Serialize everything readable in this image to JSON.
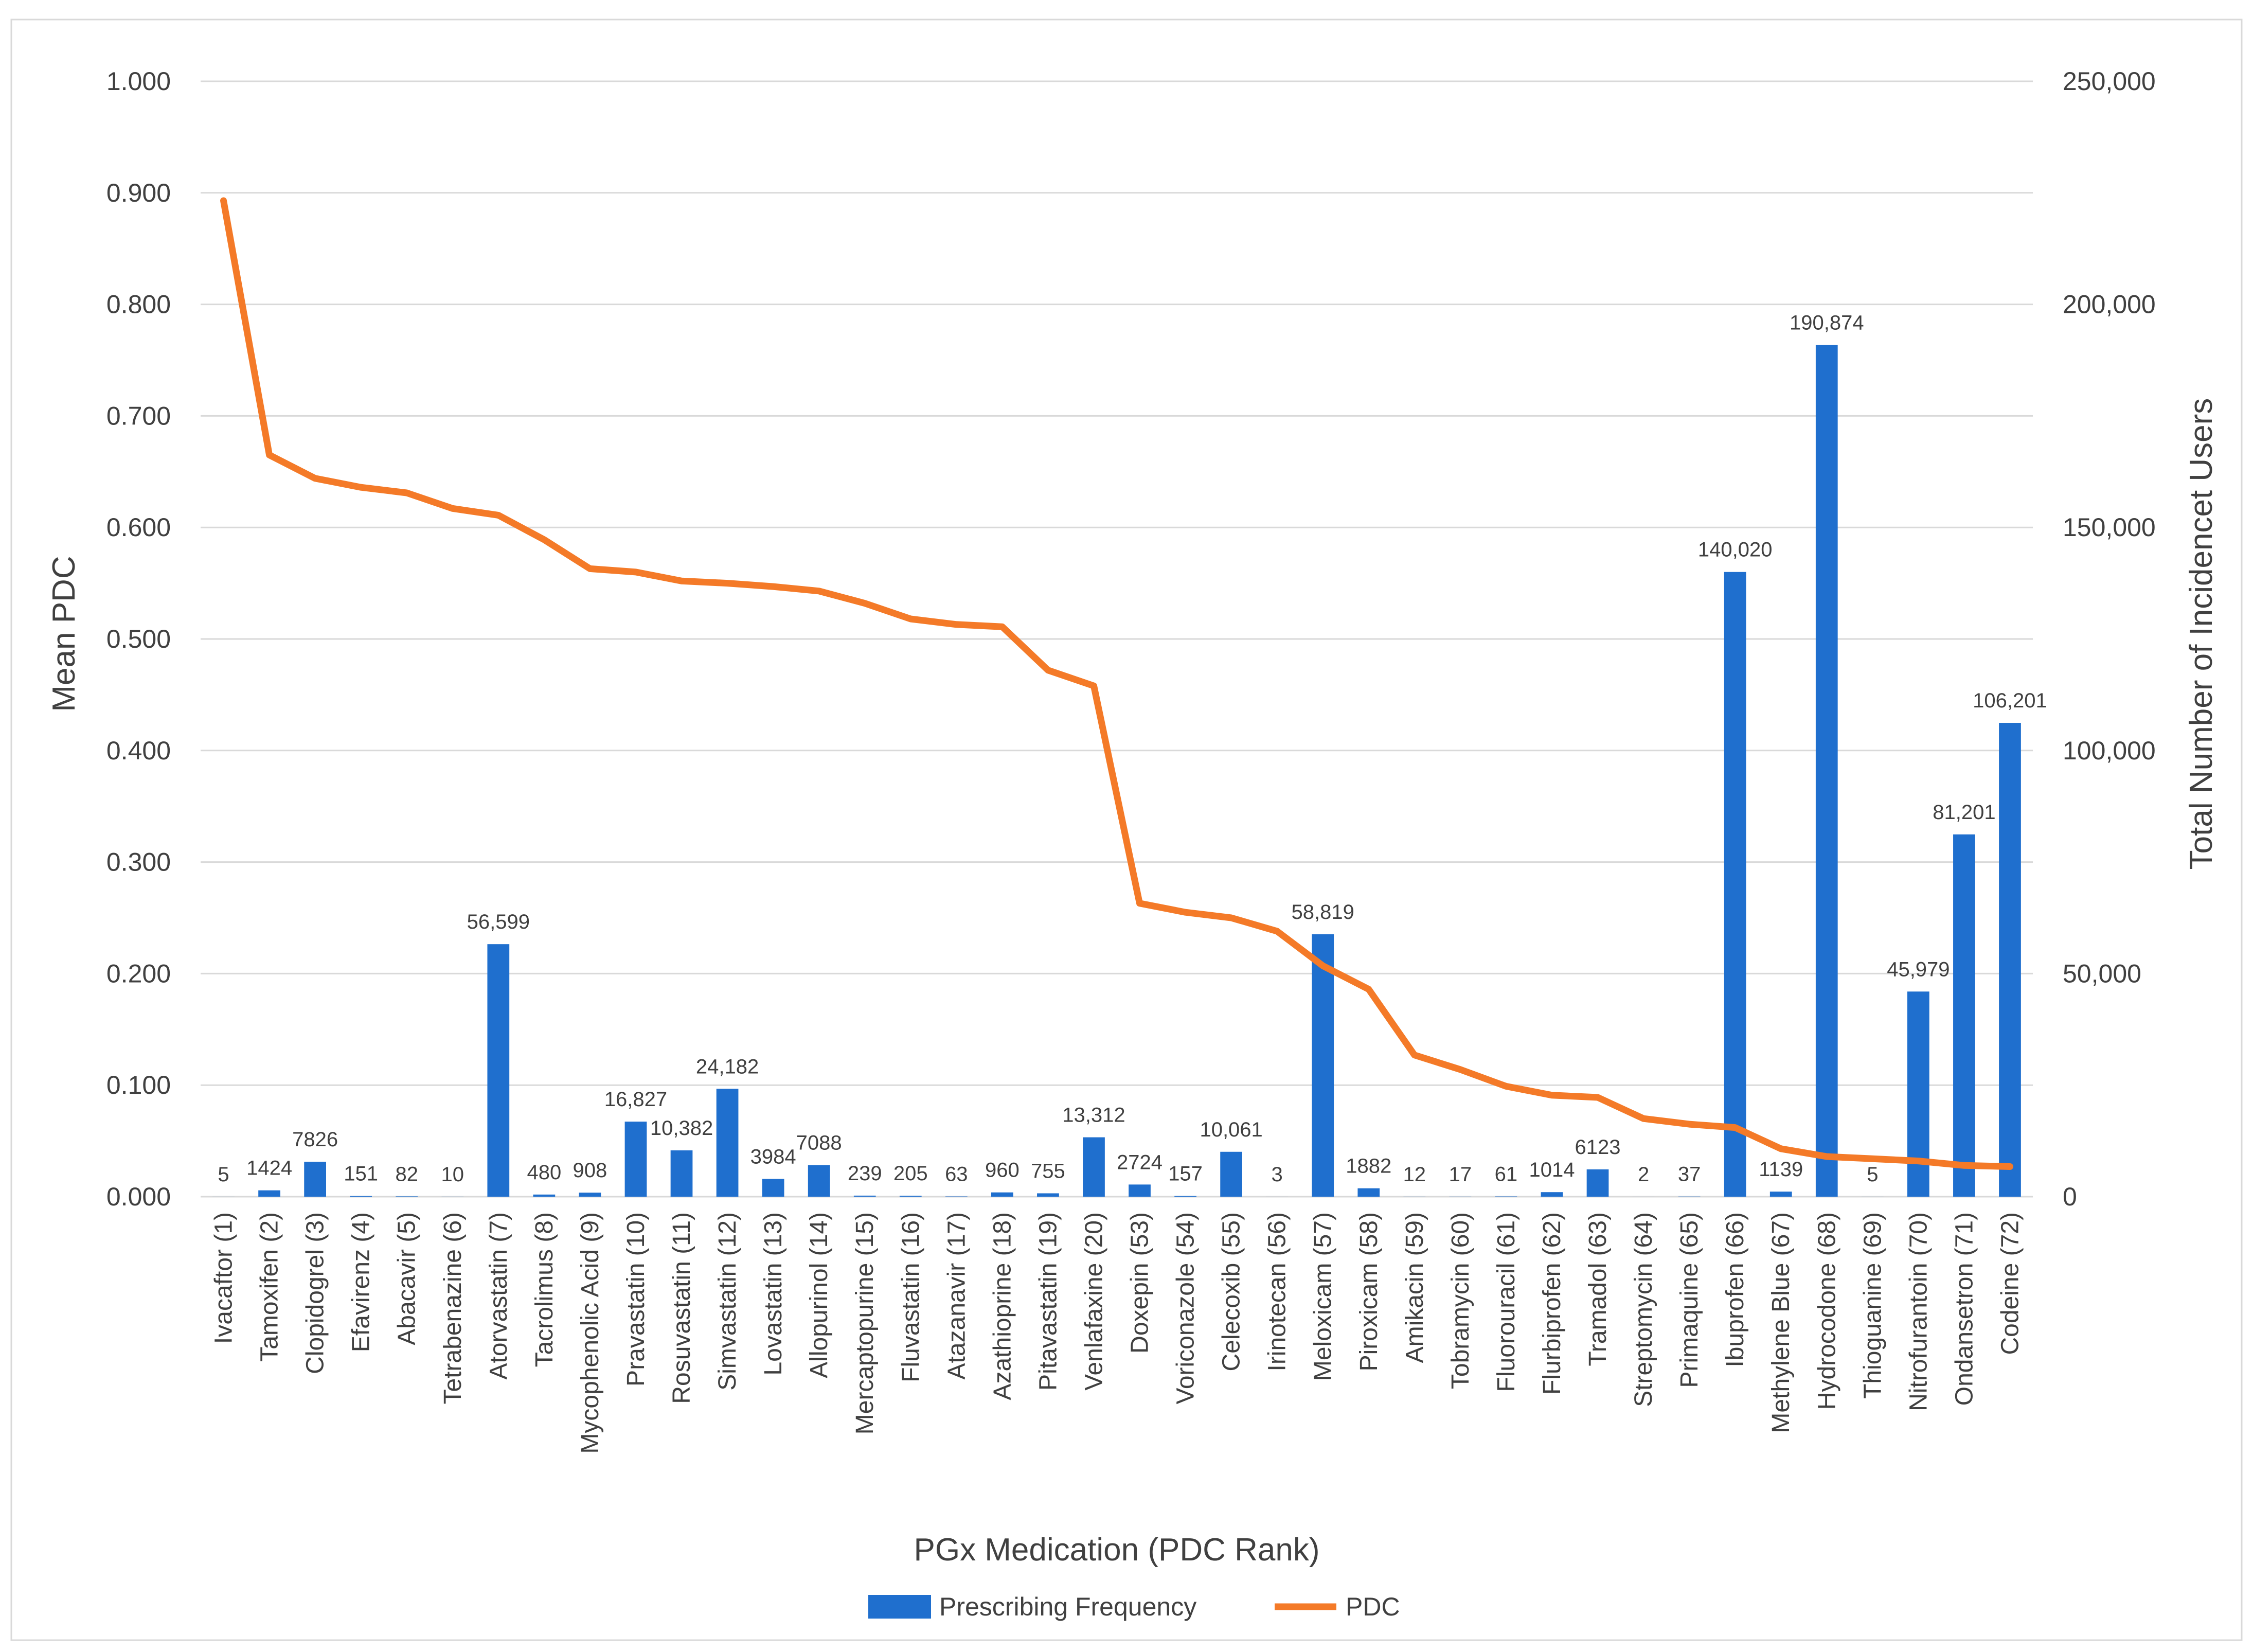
{
  "chart_data": {
    "type": "bar+line",
    "xlabel": "PGx Medication (PDC Rank)",
    "ylabel": "Mean PDC",
    "y2label": "Total Number of Incidencet Users",
    "ylim": [
      0,
      1
    ],
    "y2lim": [
      0,
      250000
    ],
    "yticks": [
      "0.000",
      "0.100",
      "0.200",
      "0.300",
      "0.400",
      "0.500",
      "0.600",
      "0.700",
      "0.800",
      "0.900",
      "1.000"
    ],
    "y2ticks": [
      "0",
      "50,000",
      "100,000",
      "150,000",
      "200,000",
      "250,000"
    ],
    "grid": true,
    "legend_position": "bottom",
    "categories": [
      "Ivacaftor (1)",
      "Tamoxifen (2)",
      "Clopidogrel (3)",
      "Efavirenz (4)",
      "Abacavir (5)",
      "Tetrabenazine (6)",
      "Atorvastatin (7)",
      "Tacrolimus (8)",
      "Mycophenolic Acid (9)",
      "Pravastatin (10)",
      "Rosuvastatin (11)",
      "Simvastatin (12)",
      "Lovastatin (13)",
      "Allopurinol (14)",
      "Mercaptopurine (15)",
      "Fluvastatin (16)",
      "Atazanavir (17)",
      "Azathioprine (18)",
      "Pitavastatin (19)",
      "Venlafaxine (20)",
      "Doxepin (53)",
      "Voriconazole (54)",
      "Celecoxib (55)",
      "Irinotecan (56)",
      "Meloxicam (57)",
      "Piroxicam (58)",
      "Amikacin (59)",
      "Tobramycin (60)",
      "Fluorouracil (61)",
      "Flurbiprofen (62)",
      "Tramadol (63)",
      "Streptomycin (64)",
      "Primaquine (65)",
      "Ibuprofen (66)",
      "Methylene Blue (67)",
      "Hydrocodone (68)",
      "Thioguanine (69)",
      "Nitrofurantoin (70)",
      "Ondansetron (71)",
      "Codeine (72)"
    ],
    "series": [
      {
        "name": "Prescribing Frequency",
        "type": "bar",
        "axis": "right",
        "color": "#1f6fce",
        "values": [
          5,
          1424,
          7826,
          151,
          82,
          10,
          56599,
          480,
          908,
          16827,
          10382,
          24182,
          3984,
          7088,
          239,
          205,
          63,
          960,
          755,
          13312,
          2724,
          157,
          10061,
          3,
          58819,
          1882,
          12,
          17,
          61,
          1014,
          6123,
          2,
          37,
          140020,
          1139,
          190874,
          5,
          45979,
          81201,
          106201
        ],
        "labels": [
          "5",
          "1424",
          "7826",
          "151",
          "82",
          "10",
          "56,599",
          "480",
          "908",
          "16,827",
          "10,382",
          "24,182",
          "3984",
          "7088",
          "239",
          "205",
          "63",
          "960",
          "755",
          "13,312",
          "2724",
          "157",
          "10,061",
          "3",
          "58,819",
          "1882",
          "12",
          "17",
          "61",
          "1014",
          "6123",
          "2",
          "37",
          "140,020",
          "1139",
          "190,874",
          "5",
          "45,979",
          "81,201",
          "106,201"
        ]
      },
      {
        "name": "PDC",
        "type": "line",
        "axis": "left",
        "color": "#f47a28",
        "values": [
          0.893,
          0.665,
          0.644,
          0.636,
          0.631,
          0.617,
          0.611,
          0.589,
          0.563,
          0.56,
          0.552,
          0.55,
          0.547,
          0.543,
          0.532,
          0.518,
          0.513,
          0.511,
          0.472,
          0.458,
          0.263,
          0.255,
          0.25,
          0.238,
          0.207,
          0.186,
          0.127,
          0.114,
          0.099,
          0.091,
          0.089,
          0.07,
          0.065,
          0.062,
          0.043,
          0.036,
          0.034,
          0.032,
          0.028,
          0.027
        ]
      }
    ]
  }
}
